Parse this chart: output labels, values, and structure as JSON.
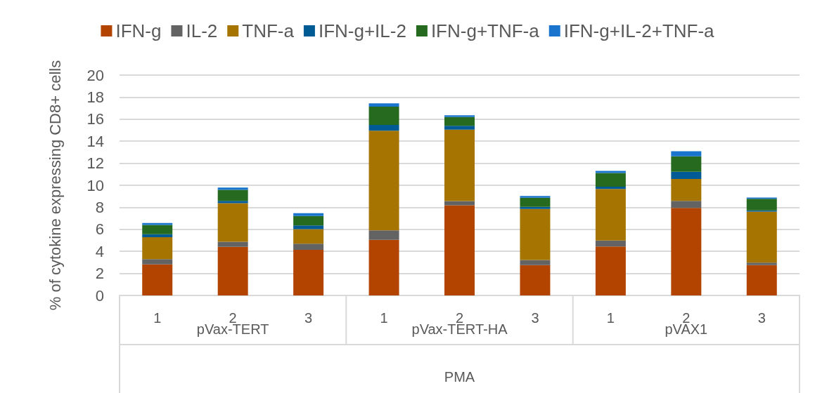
{
  "chart_data": {
    "type": "bar",
    "stacked": true,
    "ylabel": "% of cytokine expressing CD8+ cells",
    "categories": [
      "1",
      "2",
      "3",
      "1",
      "2",
      "3",
      "1",
      "2",
      "3"
    ],
    "annotations": [
      "pVax-TERT",
      "pVax-TERT-HA",
      "pVAX1",
      "PMA"
    ],
    "series": [
      {
        "name": "IFN-g",
        "color": "#b34400",
        "values": [
          2.82,
          4.41,
          4.14,
          5.05,
          8.19,
          2.76,
          4.45,
          7.95,
          2.76
        ]
      },
      {
        "name": "IL-2",
        "color": "#636363",
        "values": [
          0.47,
          0.47,
          0.55,
          0.85,
          0.38,
          0.46,
          0.53,
          0.64,
          0.21
        ]
      },
      {
        "name": "TNF-a",
        "color": "#a67400",
        "values": [
          2.0,
          3.5,
          1.33,
          9.05,
          6.47,
          4.63,
          4.69,
          1.99,
          4.64
        ]
      },
      {
        "name": "IFN-g+IL-2",
        "color": "#005b94",
        "values": [
          0.26,
          0.21,
          0.34,
          0.53,
          0.36,
          0.19,
          0.21,
          0.64,
          0.11
        ]
      },
      {
        "name": "IFN-g+TNF-a",
        "color": "#266a1f",
        "values": [
          0.85,
          1.0,
          0.85,
          1.66,
          0.8,
          0.83,
          1.23,
          1.4,
          1.06
        ]
      },
      {
        "name": "IFN-g+IL-2+TNF-a",
        "color": "#1874cd",
        "values": [
          0.17,
          0.21,
          0.26,
          0.29,
          0.15,
          0.16,
          0.19,
          0.47,
          0.11
        ]
      }
    ],
    "ylim": [
      0,
      20
    ],
    "yticks": [
      0,
      2,
      4,
      6,
      8,
      10,
      12,
      14,
      16,
      18,
      20
    ],
    "grid": "y",
    "legend": "top"
  }
}
